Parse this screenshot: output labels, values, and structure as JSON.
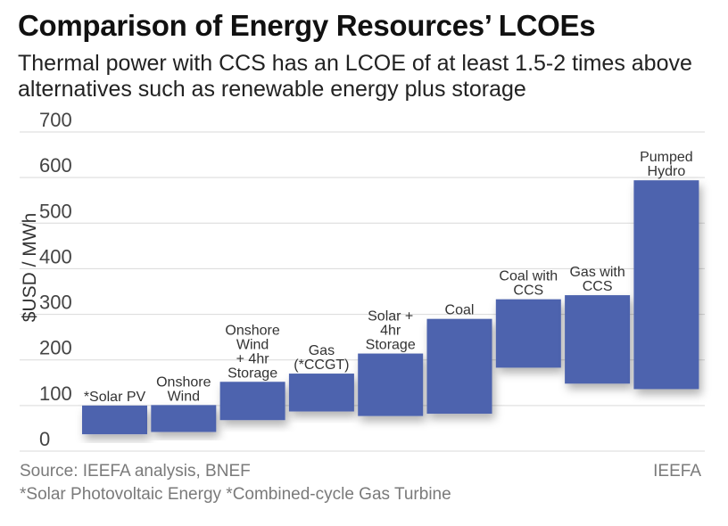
{
  "header": {
    "title": "Comparison of Energy Resources’ LCOEs",
    "subtitle": "Thermal power with CCS has an LCOE of at least 1.5-2 times above alternatives such as renewable energy plus storage"
  },
  "footer": {
    "source": "Source: IEEFA analysis, BNEF",
    "credit": "IEEFA",
    "footnote": "*Solar Photovoltaic Energy   *Combined-cycle Gas Turbine"
  },
  "colors": {
    "bar": "#4e64ae",
    "grid": "#d9d9d9",
    "text": "#333333",
    "axis_text": "#444444"
  },
  "chart_data": {
    "type": "bar",
    "subtype": "floating-range",
    "ylabel": "$USD  / MWh",
    "ylim": [
      0,
      700
    ],
    "yticks": [
      0,
      100,
      200,
      300,
      400,
      500,
      600,
      700
    ],
    "grid": true,
    "categories": [
      [
        "*Solar PV"
      ],
      [
        "Onshore",
        "Wind"
      ],
      [
        "Onshore",
        "Wind",
        "+ 4hr",
        "Storage"
      ],
      [
        "Gas",
        "(*CCGT)"
      ],
      [
        "Solar +",
        "4hr",
        "Storage"
      ],
      [
        "Coal"
      ],
      [
        "Coal with",
        "CCS"
      ],
      [
        "Gas with",
        "CCS"
      ],
      [
        "Pumped",
        "Hydro"
      ]
    ],
    "series": [
      {
        "ranges": [
          [
            37,
            100
          ],
          [
            42,
            101
          ],
          [
            68,
            152
          ],
          [
            87,
            170
          ],
          [
            77,
            214
          ],
          [
            82,
            290
          ],
          [
            183,
            333
          ],
          [
            148,
            342
          ],
          [
            136,
            594
          ]
        ]
      }
    ]
  }
}
